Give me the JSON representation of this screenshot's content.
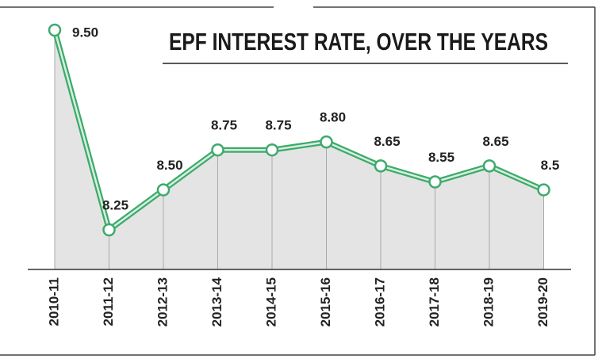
{
  "chart_data": {
    "type": "area_line",
    "title": "EPF INTEREST RATE, OVER THE YEARS",
    "categories": [
      "2010-11",
      "2011-12",
      "2012-13",
      "2013-14",
      "2014-15",
      "2015-16",
      "2016-17",
      "2017-18",
      "2018-19",
      "2019-20"
    ],
    "values": [
      9.5,
      8.25,
      8.5,
      8.75,
      8.75,
      8.8,
      8.65,
      8.55,
      8.65,
      8.5
    ],
    "value_labels": [
      "9.50",
      "8.25",
      "8.50",
      "8.75",
      "8.75",
      "8.80",
      "8.65",
      "8.55",
      "8.65",
      "8.5"
    ],
    "color": "#3daa6b"
  }
}
